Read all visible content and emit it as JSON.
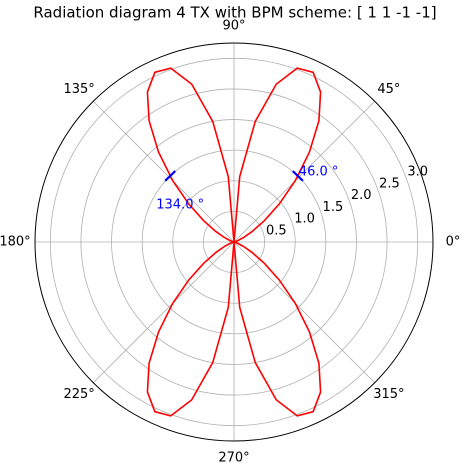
{
  "chart_data": {
    "type": "polar-line",
    "title": "Radiation diagram 4 TX with BPM scheme: [ 1  1 -1 -1]",
    "rlim": [
      0,
      3.25
    ],
    "rticks": [
      0.5,
      {
        "value": 1,
        "label": "1.0"
      },
      1.5,
      {
        "value": 2,
        "label": "2.0"
      },
      2.5,
      {
        "value": 3,
        "label": "3.0"
      }
    ],
    "thetaticks": [
      {
        "value": 0,
        "label": "0°"
      },
      {
        "value": 45,
        "label": "45°"
      },
      {
        "value": 90,
        "label": "90°"
      },
      {
        "value": 135,
        "label": "135°"
      },
      {
        "value": 180,
        "label": "180°"
      },
      {
        "value": 225,
        "label": "225°"
      },
      {
        "value": 270,
        "label": "270°"
      },
      {
        "value": 315,
        "label": "315°"
      }
    ],
    "grid": true,
    "series": [
      {
        "color": "#ff0000",
        "theta": [
          0,
          5,
          10,
          15,
          20,
          25,
          30,
          35,
          40,
          45,
          50,
          55,
          60,
          65,
          70,
          75,
          80,
          85,
          90,
          95,
          100,
          105,
          110,
          115,
          120,
          125,
          130,
          135,
          140,
          145,
          150,
          155,
          160,
          165,
          170,
          175,
          180,
          185,
          190,
          195,
          200,
          205,
          210,
          215,
          220,
          225,
          230,
          235,
          240,
          245,
          250,
          255,
          260,
          265,
          270,
          275,
          280,
          285,
          290,
          295,
          300,
          305,
          310,
          315,
          320,
          325,
          330,
          335,
          340,
          345,
          350,
          355,
          360
        ],
        "r": [
          0,
          0,
          0.005,
          0.023,
          0.071,
          0.17,
          0.341,
          0.603,
          0.964,
          1.413,
          1.917,
          2.418,
          2.828,
          3.058,
          3.022,
          2.669,
          1.999,
          1.072,
          0,
          1.072,
          1.999,
          2.669,
          3.022,
          3.058,
          2.828,
          2.418,
          1.917,
          1.413,
          0.964,
          0.603,
          0.341,
          0.17,
          0.071,
          0.023,
          0.005,
          0,
          0,
          0,
          0.005,
          0.023,
          0.071,
          0.17,
          0.341,
          0.603,
          0.964,
          1.413,
          1.917,
          2.418,
          2.828,
          3.058,
          3.022,
          2.669,
          1.999,
          1.072,
          0,
          1.072,
          1.999,
          2.669,
          3.022,
          3.058,
          2.828,
          2.418,
          1.917,
          1.413,
          0.964,
          0.603,
          0.341,
          0.17,
          0.071,
          0.023,
          0.005,
          0,
          0
        ]
      }
    ],
    "annotations": [
      {
        "theta": 46,
        "r": 1.5,
        "label": "46.0 °",
        "color": "#0000ff"
      },
      {
        "theta": 134,
        "r": 1.5,
        "label": "134.0 °",
        "color": "#0000ff"
      }
    ]
  }
}
